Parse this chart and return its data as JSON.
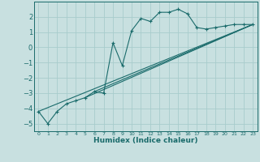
{
  "xlabel": "Humidex (Indice chaleur)",
  "ylabel": "",
  "bg_color": "#c8e0e0",
  "grid_color": "#a8cccc",
  "line_color": "#1a6b6b",
  "xlim": [
    -0.5,
    23.5
  ],
  "ylim": [
    -5.5,
    3.0
  ],
  "xticks": [
    0,
    1,
    2,
    3,
    4,
    5,
    6,
    7,
    8,
    9,
    10,
    11,
    12,
    13,
    14,
    15,
    16,
    17,
    18,
    19,
    20,
    21,
    22,
    23
  ],
  "yticks": [
    -5,
    -4,
    -3,
    -2,
    -1,
    0,
    1,
    2
  ],
  "main_line": [
    [
      0,
      -4.2
    ],
    [
      1,
      -5.0
    ],
    [
      2,
      -4.2
    ],
    [
      3,
      -3.7
    ],
    [
      4,
      -3.5
    ],
    [
      5,
      -3.3
    ],
    [
      6,
      -2.9
    ],
    [
      7,
      -3.0
    ],
    [
      8,
      0.3
    ],
    [
      9,
      -1.2
    ],
    [
      10,
      1.1
    ],
    [
      11,
      1.9
    ],
    [
      12,
      1.7
    ],
    [
      13,
      2.3
    ],
    [
      14,
      2.3
    ],
    [
      15,
      2.5
    ],
    [
      16,
      2.2
    ],
    [
      17,
      1.3
    ],
    [
      18,
      1.2
    ],
    [
      19,
      1.3
    ],
    [
      20,
      1.4
    ],
    [
      21,
      1.5
    ],
    [
      22,
      1.5
    ],
    [
      23,
      1.5
    ]
  ],
  "linear_lines": [
    [
      [
        0,
        -4.2
      ],
      [
        23,
        1.5
      ]
    ],
    [
      [
        5,
        -3.3
      ],
      [
        23,
        1.5
      ]
    ],
    [
      [
        6,
        -2.9
      ],
      [
        23,
        1.5
      ]
    ]
  ]
}
